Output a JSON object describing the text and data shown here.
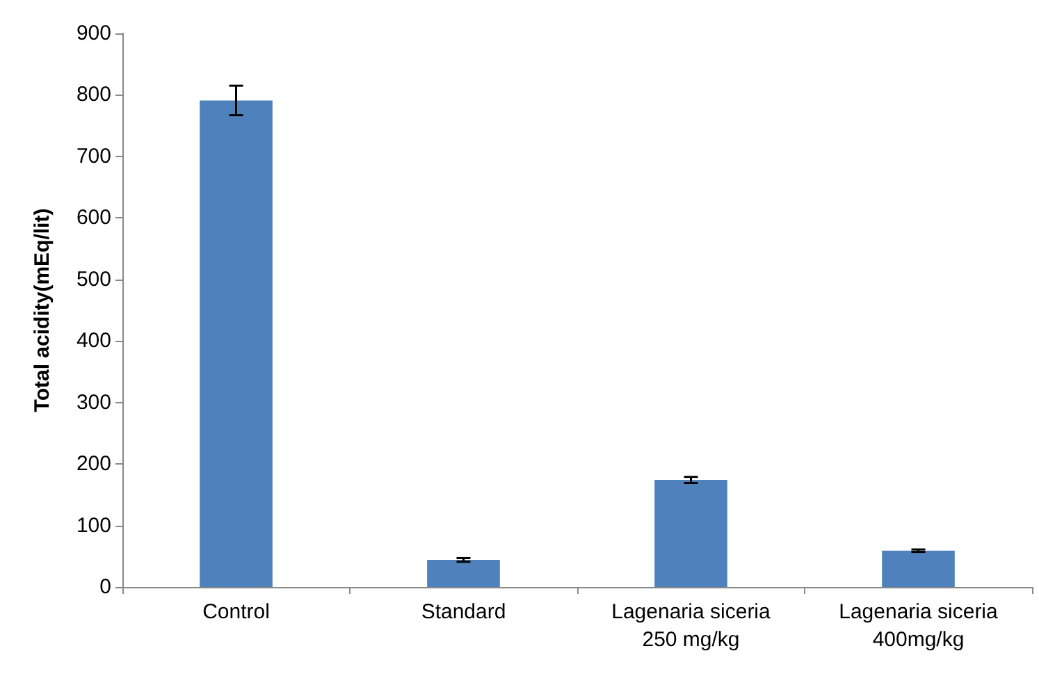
{
  "chart_data": {
    "type": "bar",
    "ylabel": "Total acidity(mEq/lit)",
    "categories": [
      "Control",
      "Standard",
      "Lagenaria siceria\n250 mg/kg",
      "Lagenaria siceria\n400mg/kg"
    ],
    "values": [
      791,
      44,
      174,
      59
    ],
    "errors": [
      24,
      3,
      5,
      2
    ],
    "color": "#4f81bd",
    "ylim": [
      0,
      900
    ],
    "yticks": [
      0,
      100,
      200,
      300,
      400,
      500,
      600,
      700,
      800,
      900
    ],
    "grid": false
  }
}
